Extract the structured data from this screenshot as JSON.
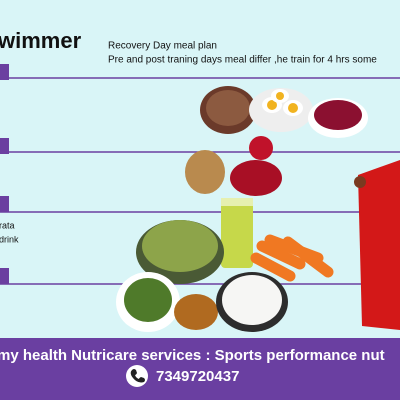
{
  "header": {
    "title": "wimmer",
    "subtitle": "Recovery Day meal plan",
    "note": "Pre and post traning days  meal differ ,he train for  4 hrs some"
  },
  "side_labels": [
    "rata",
    "drink"
  ],
  "footer": {
    "text": "my health Nutricare services : Sports performance nut",
    "phone": "7349720437"
  }
}
